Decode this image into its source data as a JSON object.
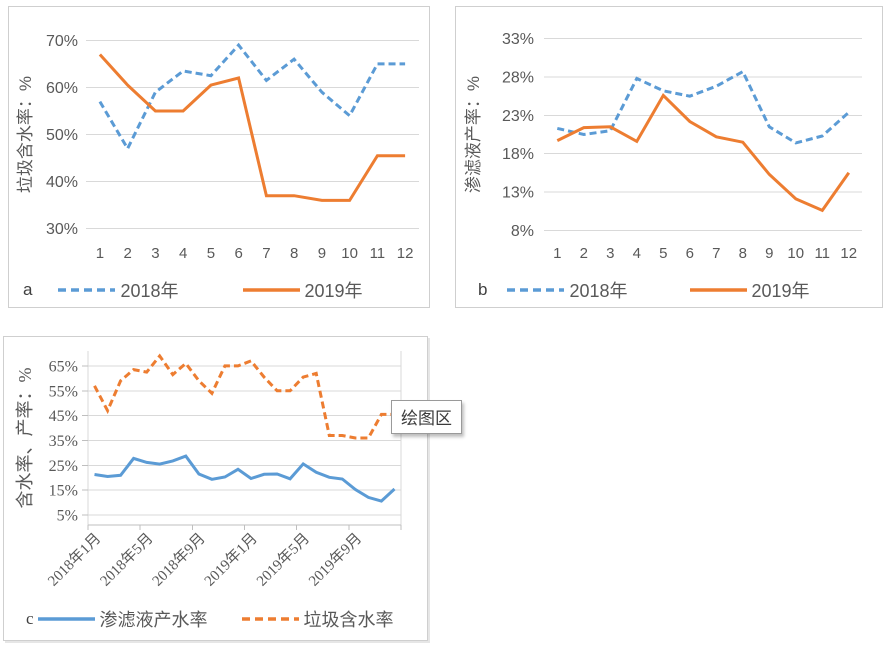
{
  "colors": {
    "blue": "#5B9BD5",
    "orange": "#ED7D31",
    "grid": "#D9D9D9",
    "axis_line": "#BFBFBF",
    "axis_text": "#595959",
    "panel_border": "#CFCFCF"
  },
  "tooltip": {
    "text": "绘图区"
  },
  "chart_data": [
    {
      "id": "a",
      "type": "line",
      "panel_label": "a",
      "title": "",
      "xlabel": "",
      "ylabel": "垃圾含水率：%",
      "categories": [
        "1",
        "2",
        "3",
        "4",
        "5",
        "6",
        "7",
        "8",
        "9",
        "10",
        "11",
        "12"
      ],
      "yticks": [
        30,
        40,
        50,
        60,
        70
      ],
      "ytick_labels": [
        "30%",
        "40%",
        "50%",
        "60%",
        "70%"
      ],
      "ylim": [
        28,
        72
      ],
      "grid": true,
      "legend_position": "bottom",
      "series": [
        {
          "name": "2018年",
          "style": "dashed",
          "color_key": "blue",
          "values": [
            57,
            47,
            59,
            63.5,
            62.5,
            69,
            61.5,
            66,
            59,
            54,
            65,
            65
          ]
        },
        {
          "name": "2019年",
          "style": "solid",
          "color_key": "orange",
          "values": [
            67,
            60.5,
            55,
            55,
            60.5,
            62,
            37,
            37,
            36,
            36,
            45.5,
            45.5
          ]
        }
      ]
    },
    {
      "id": "b",
      "type": "line",
      "panel_label": "b",
      "title": "",
      "xlabel": "",
      "ylabel": "渗滤液产率：%",
      "categories": [
        "1",
        "2",
        "3",
        "4",
        "5",
        "6",
        "7",
        "8",
        "9",
        "10",
        "11",
        "12"
      ],
      "yticks": [
        8,
        13,
        18,
        23,
        28,
        33
      ],
      "ytick_labels": [
        "8%",
        "13%",
        "18%",
        "23%",
        "28%",
        "33%"
      ],
      "ylim": [
        7,
        34
      ],
      "grid": true,
      "legend_position": "bottom",
      "series": [
        {
          "name": "2018年",
          "style": "dashed",
          "color_key": "blue",
          "values": [
            21.3,
            20.5,
            21,
            27.8,
            26.2,
            25.5,
            26.8,
            28.7,
            21.5,
            19.4,
            20.3,
            23.4
          ]
        },
        {
          "name": "2019年",
          "style": "solid",
          "color_key": "orange",
          "values": [
            19.7,
            21.4,
            21.5,
            19.6,
            25.6,
            22.2,
            20.2,
            19.5,
            15.3,
            12.1,
            10.6,
            15.5
          ]
        }
      ]
    },
    {
      "id": "c",
      "type": "line",
      "panel_label": "c",
      "title": "",
      "xlabel": "",
      "ylabel": "含水率、产率：%",
      "x_labels": [
        "2018年1月",
        "2018年5月",
        "2018年9月",
        "2019年1月",
        "2019年5月",
        "2019年9月"
      ],
      "x_label_positions": [
        0,
        4,
        8,
        12,
        16,
        20
      ],
      "x_points": 24,
      "yticks": [
        5,
        15,
        25,
        35,
        45,
        55,
        65
      ],
      "ytick_labels": [
        "5%",
        "15%",
        "25%",
        "35%",
        "45%",
        "55%",
        "65%"
      ],
      "ylim": [
        1,
        71
      ],
      "grid": true,
      "axis_lines": true,
      "legend_position": "bottom",
      "series": [
        {
          "name": "渗滤液产水率",
          "style": "solid",
          "color_key": "blue",
          "values": [
            21.3,
            20.5,
            21,
            27.8,
            26.2,
            25.5,
            26.8,
            28.7,
            21.5,
            19.4,
            20.3,
            23.4,
            19.7,
            21.4,
            21.5,
            19.6,
            25.6,
            22.2,
            20.2,
            19.5,
            15.3,
            12.1,
            10.6,
            15.5
          ]
        },
        {
          "name": "垃圾含水率",
          "style": "dashed",
          "color_key": "orange",
          "values": [
            57,
            47,
            59,
            63.5,
            62.5,
            69,
            61.5,
            66,
            59,
            54,
            65,
            65,
            67,
            60.5,
            55,
            55,
            60.5,
            62,
            37,
            37,
            36,
            36,
            45.5,
            45.5
          ]
        }
      ]
    }
  ]
}
